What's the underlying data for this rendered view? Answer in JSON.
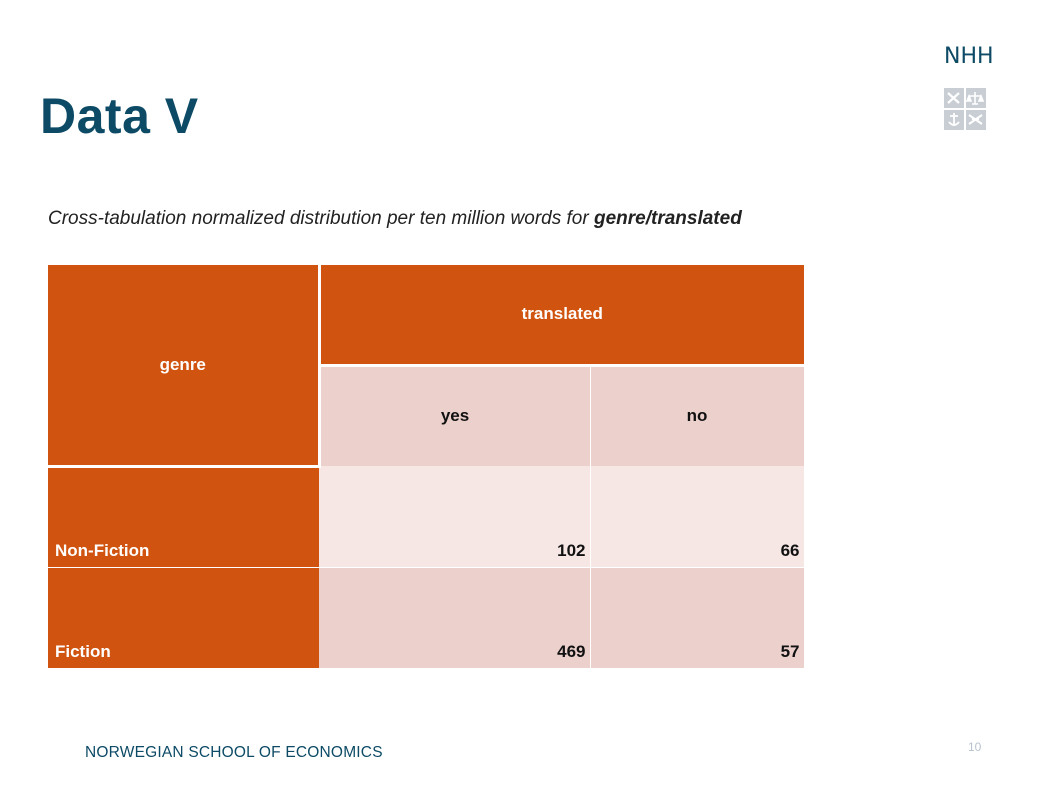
{
  "slide": {
    "title": "Data V",
    "subtitle_prefix": "Cross-tabulation normalized distribution per ten million words for ",
    "subtitle_emphasis": "genre/translated",
    "footer": "NORWEGIAN SCHOOL OF ECONOMICS",
    "page_number": "10"
  },
  "logo": {
    "text": "NHH",
    "icon": "nhh-crest-icon"
  },
  "table": {
    "row_header": "genre",
    "column_group": "translated",
    "columns": [
      "yes",
      "no"
    ],
    "rows": [
      {
        "label": "Non-Fiction",
        "values": [
          "102",
          "66"
        ]
      },
      {
        "label": "Fiction",
        "values": [
          "469",
          "57"
        ]
      }
    ]
  },
  "colors": {
    "title": "#0c4a65",
    "header_fill": "#d05410",
    "subheader_fill": "#ebd0cc",
    "row1_fill": "#f6e7e5",
    "row2_fill": "#ebd0cc"
  }
}
